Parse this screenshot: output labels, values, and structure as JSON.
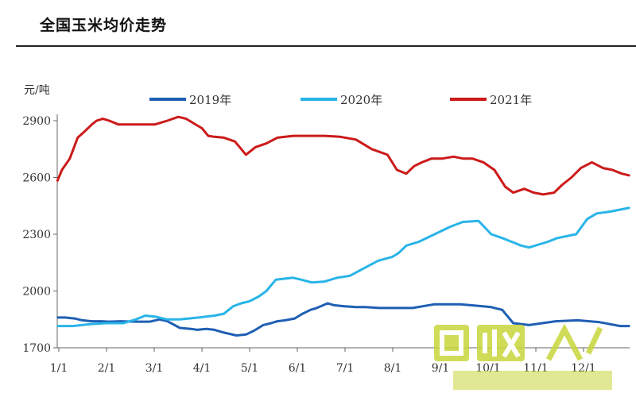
{
  "title": "全国玉米均价走势",
  "chart_data": {
    "type": "line",
    "title": "全国玉米均价走势",
    "ylabel": "元/吨",
    "xlabel": "",
    "ylim": [
      1700,
      2900
    ],
    "yticks": [
      "2900",
      "2600",
      "2300",
      "2000",
      "1700"
    ],
    "categories": [
      "1/1",
      "2/1",
      "3/1",
      "4/1",
      "5/1",
      "6/1",
      "7/1",
      "8/1",
      "9/1",
      "10/1",
      "11/1",
      "12/1"
    ],
    "legend_position": "top",
    "grid": false,
    "series": [
      {
        "name": "2019年",
        "color": "#1f5fb4",
        "x": [
          0,
          5,
          11,
          16,
          22,
          28,
          33,
          40,
          50,
          59,
          65,
          70,
          78,
          85,
          89,
          95,
          100,
          106,
          114,
          120,
          125,
          131,
          136,
          140,
          145,
          151,
          156,
          161,
          165,
          172,
          176,
          182,
          190,
          196,
          205,
          212,
          226,
          240,
          256,
          263,
          270,
          276,
          283,
          290,
          300,
          317,
          331,
          345,
          358,
          364
        ],
        "y": [
          1860,
          1860,
          1855,
          1845,
          1840,
          1840,
          1838,
          1840,
          1838,
          1838,
          1850,
          1840,
          1805,
          1800,
          1795,
          1800,
          1795,
          1780,
          1765,
          1770,
          1790,
          1820,
          1830,
          1840,
          1845,
          1855,
          1880,
          1900,
          1910,
          1935,
          1925,
          1920,
          1915,
          1915,
          1910,
          1910,
          1910,
          1930,
          1930,
          1925,
          1920,
          1915,
          1900,
          1830,
          1820,
          1840,
          1845,
          1835,
          1815,
          1815
        ]
      },
      {
        "name": "2020年",
        "color": "#29b4e8",
        "x": [
          0,
          10,
          21,
          31,
          42,
          50,
          56,
          62,
          70,
          78,
          90,
          100,
          106,
          112,
          117,
          122,
          128,
          133,
          139,
          150,
          155,
          162,
          170,
          178,
          186,
          195,
          204,
          213,
          217,
          222,
          230,
          240,
          250,
          258,
          268,
          276,
          283,
          289,
          295,
          300,
          312,
          318,
          330,
          337,
          343,
          352,
          358,
          364
        ],
        "y": [
          1815,
          1815,
          1825,
          1830,
          1830,
          1850,
          1870,
          1865,
          1850,
          1850,
          1860,
          1870,
          1880,
          1920,
          1935,
          1945,
          1970,
          2000,
          2060,
          2070,
          2060,
          2045,
          2050,
          2070,
          2080,
          2120,
          2160,
          2180,
          2200,
          2240,
          2260,
          2300,
          2340,
          2365,
          2370,
          2300,
          2280,
          2260,
          2240,
          2230,
          2260,
          2280,
          2300,
          2380,
          2410,
          2420,
          2430,
          2440
        ]
      },
      {
        "name": "2021年",
        "color": "#cc1a1a",
        "x": [
          0,
          3,
          8,
          13,
          17,
          22,
          25,
          29,
          33,
          39,
          45,
          55,
          62,
          70,
          77,
          82,
          86,
          92,
          96,
          100,
          106,
          113,
          120,
          126,
          133,
          140,
          150,
          160,
          170,
          180,
          190,
          200,
          210,
          216,
          222,
          227,
          232,
          238,
          245,
          252,
          258,
          264,
          271,
          278,
          285,
          290,
          297,
          303,
          309,
          316,
          321,
          327,
          333,
          340,
          347,
          353,
          359,
          364
        ],
        "y": [
          2580,
          2640,
          2700,
          2810,
          2840,
          2880,
          2900,
          2910,
          2900,
          2880,
          2880,
          2880,
          2880,
          2900,
          2920,
          2910,
          2890,
          2860,
          2820,
          2815,
          2810,
          2790,
          2720,
          2760,
          2780,
          2810,
          2820,
          2820,
          2820,
          2815,
          2800,
          2750,
          2720,
          2640,
          2620,
          2660,
          2680,
          2700,
          2700,
          2710,
          2700,
          2700,
          2680,
          2640,
          2550,
          2520,
          2540,
          2520,
          2510,
          2520,
          2560,
          2600,
          2650,
          2680,
          2650,
          2640,
          2620,
          2610
        ]
      }
    ]
  }
}
